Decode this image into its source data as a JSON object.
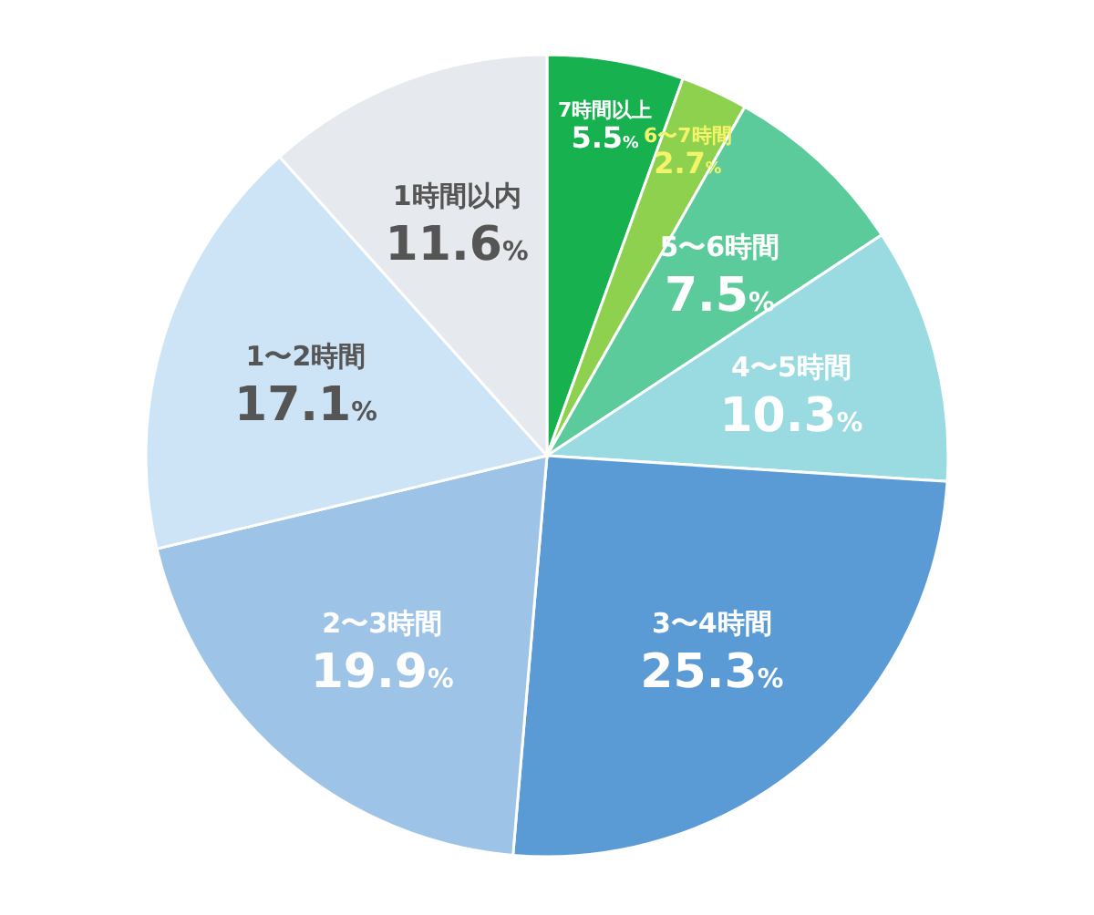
{
  "chart_data": {
    "type": "pie",
    "categories": [
      "7時間以上",
      "6〜7時間",
      "5〜6時間",
      "4〜5時間",
      "3〜4時間",
      "2〜3時間",
      "1〜2時間",
      "1時間以内"
    ],
    "values": [
      5.5,
      2.7,
      7.5,
      10.3,
      25.3,
      19.9,
      17.1,
      11.6
    ],
    "value_labels": [
      "5.5%",
      "2.7%",
      "7.5%",
      "10.3%",
      "25.3%",
      "19.9%",
      "17.1%",
      "11.6%"
    ],
    "colors": [
      "#17b24f",
      "#8ed14e",
      "#5ccb9b",
      "#99dbe0",
      "#5b9bd5",
      "#9dc3e6",
      "#cde4f6",
      "#e6e9ed"
    ]
  }
}
